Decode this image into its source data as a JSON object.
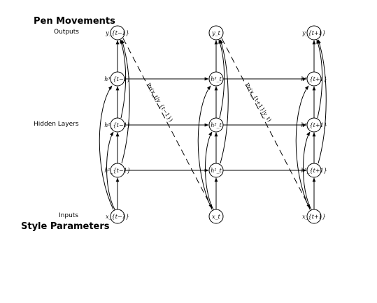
{
  "headings": {
    "top": "Pen Movements",
    "bottom": "Style Parameters"
  },
  "row_labels": {
    "outputs": "Outputs",
    "hidden": "Hidden Layers",
    "inputs": "Inputs"
  },
  "timesteps": [
    {
      "output": "y_{t−1}",
      "hidden": [
        "h¹_{t−1}",
        "h²_{t−1}",
        "h³_{t−1}"
      ],
      "input": "x_{t−1}"
    },
    {
      "output": "y_t",
      "hidden": [
        "h¹_t",
        "h²_t",
        "h³_t"
      ],
      "input": "x_t"
    },
    {
      "output": "y_{t+1}",
      "hidden": [
        "h¹_{t+1}",
        "h²_{t+1}",
        "h³_{t+1}"
      ],
      "input": "x_{t+1}"
    }
  ],
  "probabilities": [
    "Pr(x_t|y_{t−1})",
    "Pr(x_{t+1}|y_t)"
  ]
}
